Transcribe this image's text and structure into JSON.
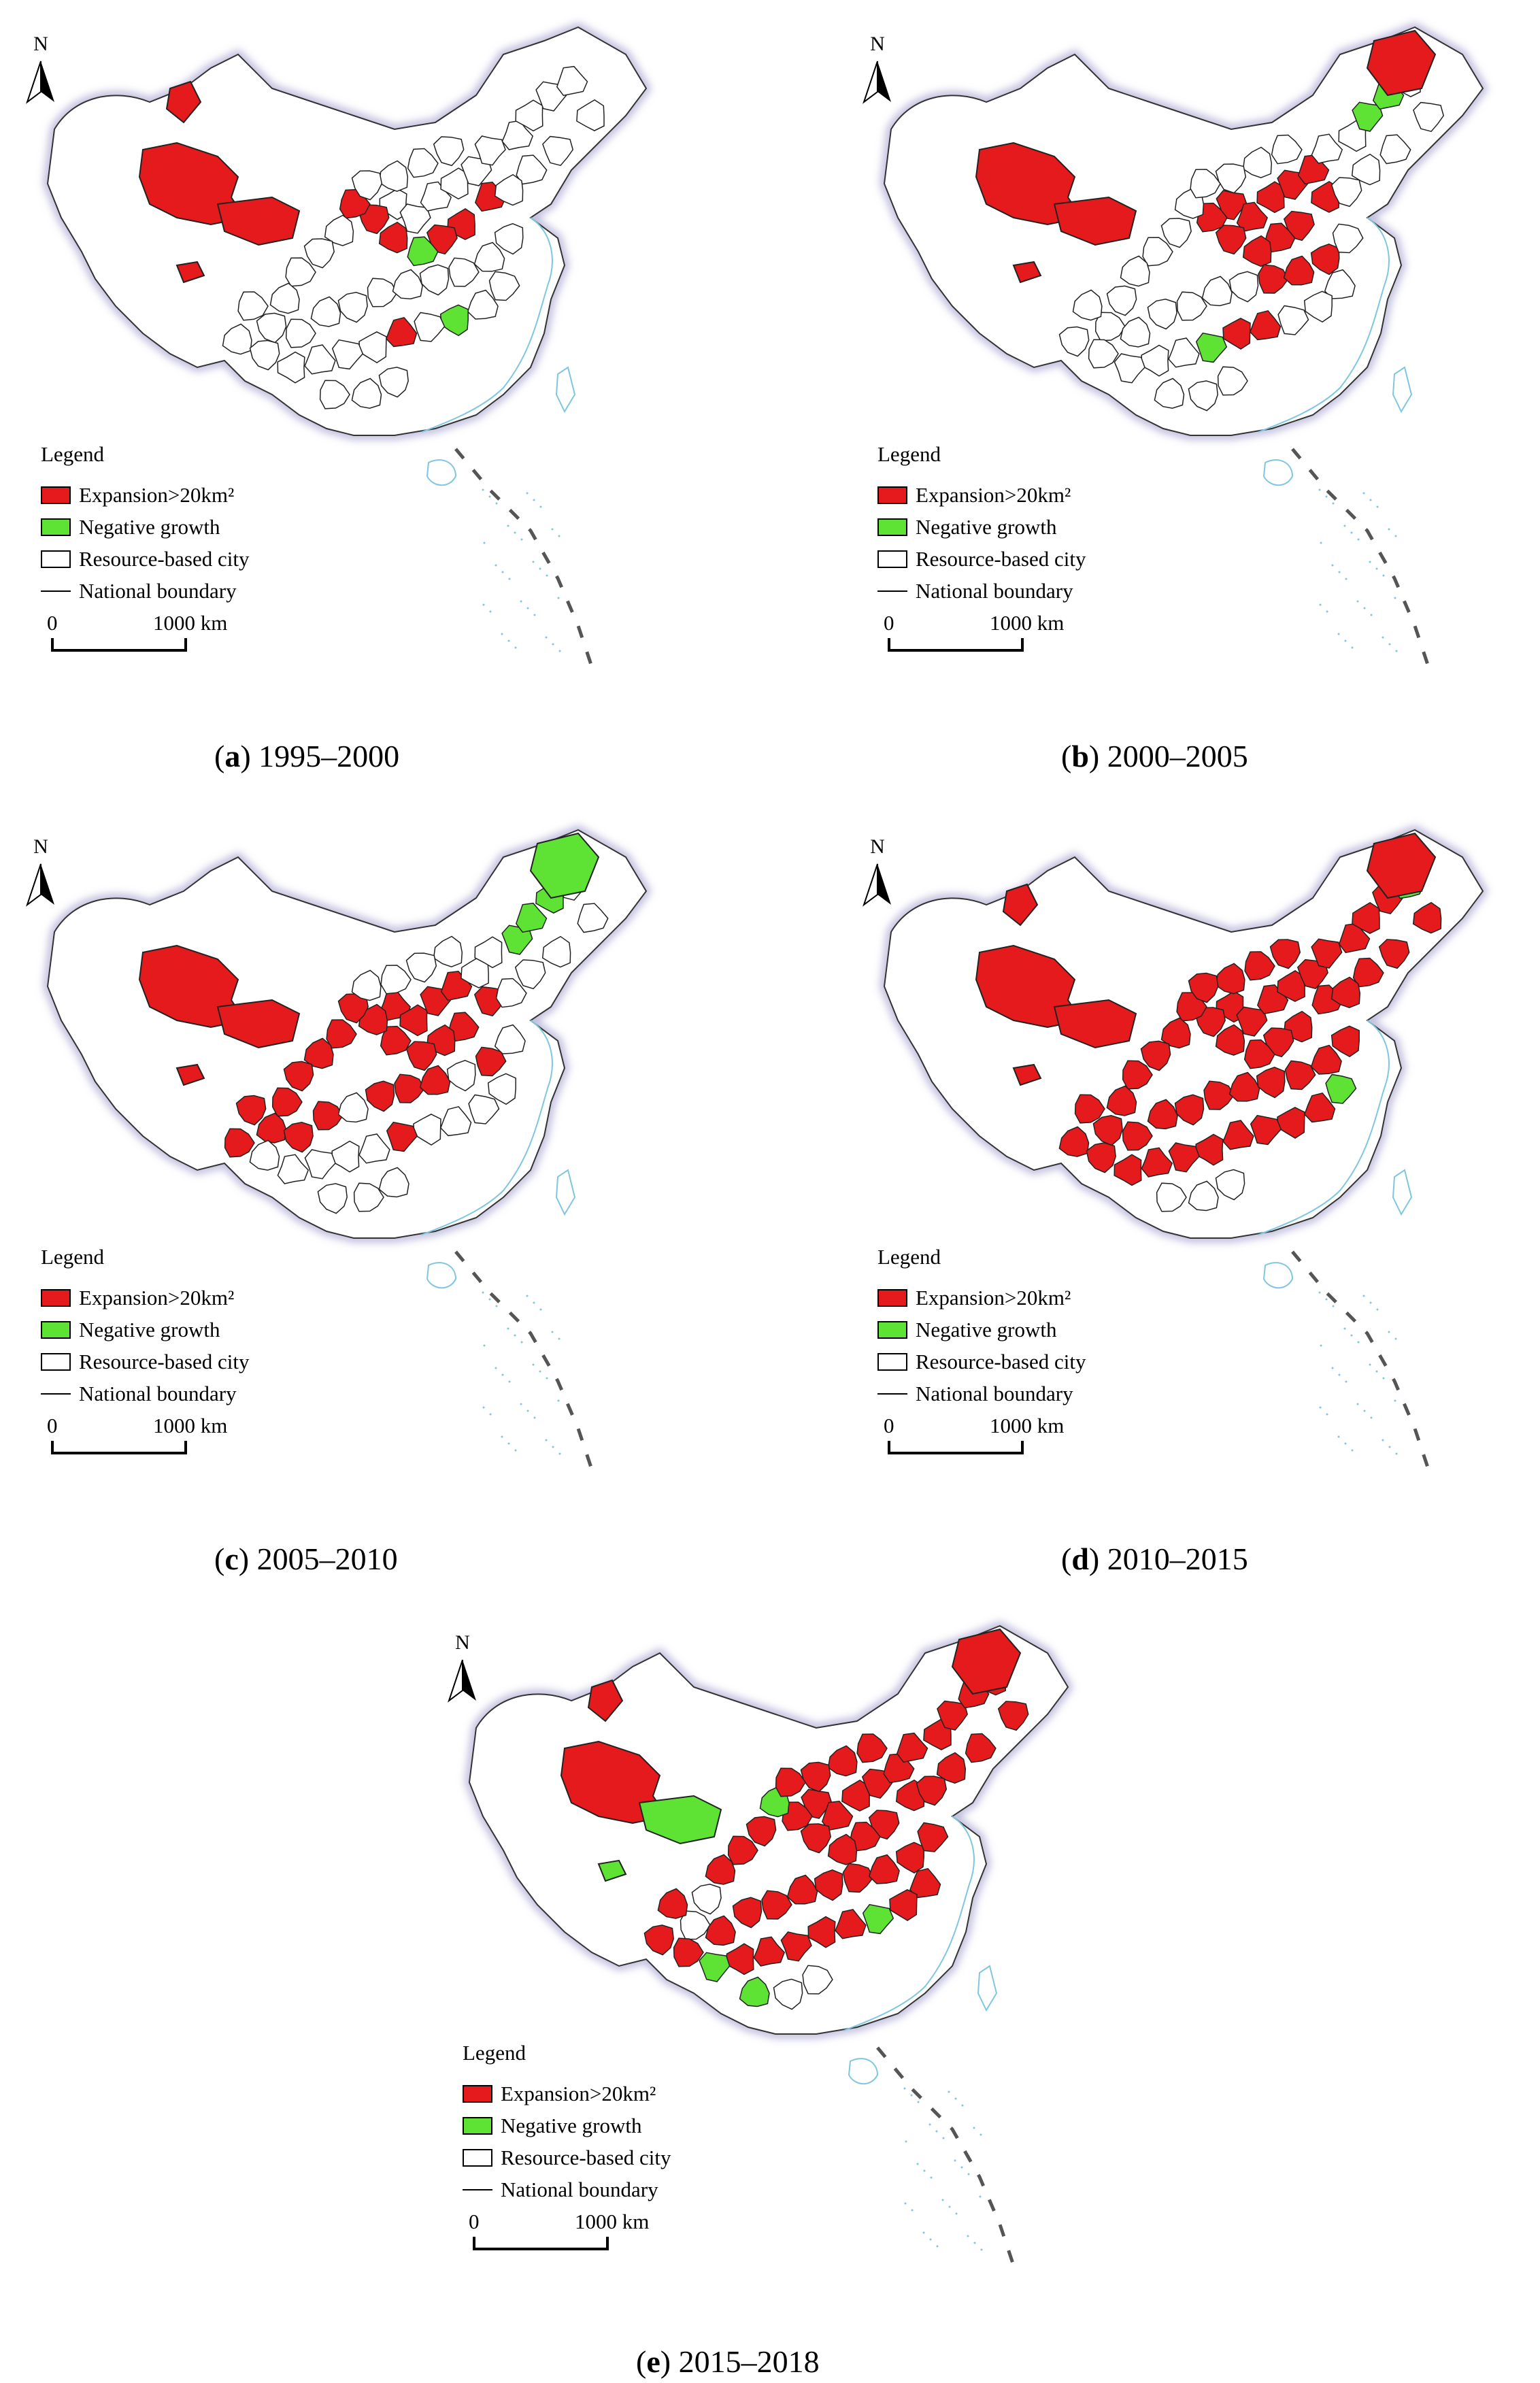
{
  "legend": {
    "title": "Legend",
    "expansion": "Expansion>20km²",
    "negative": "Negative growth",
    "resource": "Resource-based city",
    "boundary": "National boundary",
    "scale_start": "0",
    "scale_end": "1000 km"
  },
  "north_label": "N",
  "colors": {
    "expansion": "#e41a1c",
    "negative": "#5ee234",
    "outline": "#222222",
    "sea": "#7fc6e0"
  },
  "panels": [
    {
      "letter": "a",
      "caption": " 1995–2000"
    },
    {
      "letter": "b",
      "caption": " 2000–2005"
    },
    {
      "letter": "c",
      "caption": " 2005–2010"
    },
    {
      "letter": "d",
      "caption": " 2010–2015"
    },
    {
      "letter": "e",
      "caption": " 2015–2018"
    }
  ]
}
